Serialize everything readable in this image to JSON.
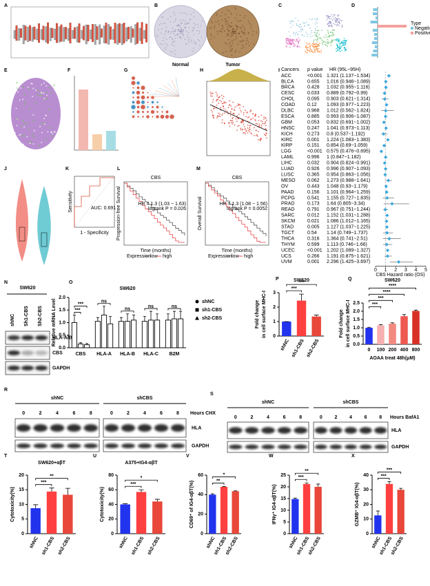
{
  "figure": {
    "panel_labels": [
      "A",
      "B",
      "C",
      "D",
      "E",
      "F",
      "G",
      "H",
      "I",
      "J",
      "K",
      "L",
      "M",
      "N",
      "O",
      "P",
      "Q",
      "R",
      "S",
      "T",
      "U",
      "V",
      "W",
      "X"
    ],
    "B": {
      "labels": [
        "Normal",
        "Tumor"
      ]
    },
    "D": {
      "legend_title": "Type",
      "legend": [
        "Negative",
        "Positive"
      ]
    },
    "K": {
      "annotation": "AUC: 0.691",
      "xlabel": "1 - Specificity",
      "ylabel": "Sensitivity"
    },
    "L": {
      "title": "CBS",
      "hr": "HR = 1.3 (1.03 − 1.63)",
      "p": "logrank P = 0.026",
      "ylabel": "Progression-free Survival",
      "xlabel": "Time (months)",
      "legend_title": "Expression",
      "legend": [
        "low",
        "high"
      ]
    },
    "M": {
      "title": "CBS",
      "hr": "HR = 1.3 (1.08 − 1.56)",
      "p": "logrank P = 0.0052",
      "ylabel": "Overall Survival",
      "xlabel": "Time (months)",
      "legend_title": "Expression",
      "legend": [
        "low",
        "high"
      ]
    },
    "N": {
      "title": "SW620",
      "lanes": [
        "shNC",
        "Sh1-CBS",
        "Sh2-CBS"
      ],
      "bands": [
        "HLA-A/B/C",
        "CBS",
        "GAPDH"
      ]
    },
    "R": {
      "groups": [
        "shNC",
        "shCBS"
      ],
      "hours": [
        0,
        2,
        4,
        6,
        8
      ],
      "unit": "Hours CHX",
      "bands": [
        "HLA",
        "GAPDH"
      ]
    },
    "S": {
      "groups": [
        "shNC",
        "shCBS"
      ],
      "hours": [
        0,
        2,
        4,
        6,
        8
      ],
      "unit": "Hours BafA1",
      "bands": [
        "HLA",
        "GAPDH"
      ]
    }
  },
  "chart_data": [
    {
      "type": "forest",
      "columns": [
        "Cancers",
        "p value",
        "HR (95L~95H)"
      ],
      "categories": [
        "ACC",
        "BLCA",
        "BRCA",
        "CESC",
        "CHOL",
        "COAD",
        "DLBC",
        "ESCA",
        "GBM",
        "HNSC",
        "KICH",
        "KIRC",
        "KIRP",
        "LGG",
        "LAML",
        "LIHC",
        "LUAD",
        "LUSC",
        "MESO",
        "OV",
        "PAAD",
        "PCPG",
        "PRAD",
        "READ",
        "SARC",
        "SKCM",
        "STAD",
        "TGCT",
        "THCA",
        "THYM",
        "UCEC",
        "UCS",
        "UVM"
      ],
      "p_values": [
        "<0.001",
        "0.655",
        "0.428",
        "0.033",
        "0.095",
        "0.12",
        "0.968",
        "0.885",
        "0.053",
        "0.247",
        "0.273",
        "0.001",
        "0.151",
        "<0.001",
        "0.996",
        "0.032",
        "0.926",
        "0.365",
        "0.062",
        "0.443",
        "0.156",
        "0.541",
        "0.173",
        "0.791",
        "0.012",
        "0.021",
        "0.005",
        "0.54",
        "0.316",
        "0.599",
        "<0.001",
        "0.266",
        "0.001"
      ],
      "values": [
        1.321,
        1.016,
        1.032,
        0.889,
        0.903,
        1.093,
        1.012,
        0.993,
        0.832,
        1.041,
        0.8,
        1.224,
        0.854,
        0.575,
        1,
        0.904,
        0.996,
        0.954,
        1.273,
        1.048,
        1.101,
        1.155,
        1.64,
        0.967,
        1.152,
        1.086,
        1.127,
        1.14,
        1.364,
        1.113,
        1.202,
        1.191,
        2.296
      ],
      "lower": [
        1.137,
        0.946,
        0.955,
        0.792,
        0.621,
        0.977,
        0.562,
        0.906,
        0.691,
        0.973,
        0.537,
        1.083,
        0.69,
        0.476,
        0.847,
        0.824,
        0.907,
        0.863,
        0.988,
        0.93,
        0.964,
        0.727,
        0.805,
        0.751,
        1.031,
        1.012,
        1.037,
        0.749,
        0.741,
        0.746,
        1.089,
        0.875,
        1.425
      ],
      "upper": [
        1.534,
        1.089,
        1.116,
        0.99,
        1.314,
        1.223,
        1.824,
        1.087,
        1.002,
        1.113,
        1.192,
        1.383,
        1.059,
        0.695,
        1.182,
        0.991,
        1.093,
        1.056,
        1.641,
        1.179,
        1.259,
        1.835,
        3.34,
        1.244,
        1.288,
        1.165,
        1.225,
        1.737,
        2.51,
        1.66,
        1.327,
        1.621,
        3.697
      ],
      "value_labels": [
        "1.321 (1.137~1.534)",
        "1.016 (0.946~1.089)",
        "1.032 (0.955~1.116)",
        "0.889 (0.792~0.99)",
        "0.903 (0.621~1.314)",
        "1.093 (0.977~1.223)",
        "1.012 (0.562~1.824)",
        "0.993 (0.906~1.087)",
        "0.832 (0.691~1.002)",
        "1.041 (0.973~1.113)",
        "0.8 (0.537~1.192)",
        "1.224 (1.083~1.383)",
        "0.854 (0.69~1.059)",
        "0.575 (0.476~0.695)",
        "1 (0.847~1.182)",
        "0.904 (0.824~0.991)",
        "0.996 (0.907~1.093)",
        "0.954 (0.863~1.056)",
        "1.273 (0.988~1.641)",
        "1.048 (0.93~1.179)",
        "1.101 (0.964~1.259)",
        "1.155 (0.727~1.835)",
        "1.64 (0.805~3.34)",
        "0.967 (0.751~1.244)",
        "1.152 (1.031~1.288)",
        "1.086 (1.012~1.165)",
        "1.127 (1.037~1.225)",
        "1.14 (0.749~1.737)",
        "1.364 (0.741~2.51)",
        "1.113 (0.746~1.66)",
        "1.202 (1.089~1.327)",
        "1.191 (0.875~1.621)",
        "2.296 (1.425~3.697)"
      ],
      "color": "#3aa6dd",
      "xlim": [
        0,
        5
      ],
      "xticks": [
        0,
        1,
        2,
        3,
        4,
        5
      ],
      "reference": 1,
      "xlabel": "CBS Hazard ratio (OS)"
    },
    {
      "type": "bar",
      "title": "SW620",
      "ylabel": [
        "Relative mRNA Level"
      ],
      "categories": [
        "CBS",
        "HLA-A",
        "HLA-B",
        "HLA-C",
        "B2M"
      ],
      "series": [
        {
          "name": "shNC",
          "color": "#000000",
          "marker": "circle",
          "values": [
            1.0,
            1.05,
            1.05,
            1.05,
            1.1
          ],
          "errors": [
            0.3,
            0.15,
            0.15,
            0.2,
            0.25
          ]
        },
        {
          "name": "sh1-CBS",
          "color": "#000000",
          "marker": "square",
          "values": [
            0.15,
            1.3,
            1.05,
            1.1,
            1.15
          ],
          "errors": [
            0.05,
            0.35,
            0.3,
            0.35,
            0.3
          ]
        },
        {
          "name": "sh2-CBS",
          "color": "#000000",
          "marker": "triangle",
          "values": [
            0.12,
            0.95,
            1.1,
            1.1,
            1.15
          ],
          "errors": [
            0.05,
            0.3,
            0.2,
            0.25,
            0.3
          ]
        }
      ],
      "ylim": [
        0,
        2
      ],
      "yticks": [
        {
          "value": 0,
          "label": "0.0"
        },
        0.5,
        {
          "value": 1,
          "label": "1.0"
        },
        1.5,
        {
          "value": 2,
          "label": "2.0"
        }
      ],
      "annotations": [
        [
          "***",
          "***"
        ],
        [
          "ns"
        ],
        [
          "ns"
        ],
        [
          "ns"
        ],
        [
          "ns"
        ]
      ]
    },
    {
      "type": "bar",
      "title": "SW620",
      "ylabel": [
        "Fold change",
        "in cell surface MHC-I"
      ],
      "categories": [
        "shNC",
        "sh1-CBS",
        "sh2-CBS"
      ],
      "values": [
        1,
        2.45,
        1.35
      ],
      "errors": [
        0,
        0.45,
        0.1
      ],
      "colors": [
        "#2233ee",
        "#ff4040",
        "#e8473a"
      ],
      "ylim": [
        0,
        3
      ],
      "yticks": [
        0,
        1,
        2,
        3
      ],
      "annotations": [
        "***",
        "***"
      ],
      "rotate_labels": true
    },
    {
      "type": "bar",
      "title": "SW620",
      "ylabel": [
        "Fold change",
        "in cell surface MHC-I"
      ],
      "xlabel": "AOAA treat 48h(μM)",
      "categories": [
        0,
        100,
        200,
        400,
        800
      ],
      "values": [
        1,
        1.15,
        1.25,
        1.7,
        2.02
      ],
      "errors": [
        0.03,
        0.04,
        0.05,
        0.1,
        0.05
      ],
      "colors": [
        "#2233ee",
        "#f7b0b0",
        "#f28a80",
        "#ee5a52",
        "#d73027"
      ],
      "ylim": [
        0,
        2.5
      ],
      "yticks": [
        {
          "value": 0,
          "label": "0.0"
        },
        0.5,
        {
          "value": 1,
          "label": "1.0"
        },
        1.5,
        {
          "value": 2,
          "label": "2.0"
        },
        2.5
      ],
      "annotations": [
        "***",
        "***",
        "****",
        "****"
      ]
    },
    {
      "type": "bar",
      "title": "SW620+αβT",
      "ylabel": [
        "Cytotoxicity(%)"
      ],
      "categories": [
        "shNC",
        "sh1-CBS",
        "sh2-CBS"
      ],
      "values": [
        8.7,
        14.4,
        13.3
      ],
      "errors": [
        1.2,
        1.2,
        2.2
      ],
      "colors": [
        "#2233ee",
        "#ff4040",
        "#e8473a"
      ],
      "ylim": [
        0,
        20
      ],
      "yticks": [
        0,
        5,
        10,
        15,
        20
      ],
      "annotations": [
        "***",
        "**"
      ],
      "rotate_labels": true
    },
    {
      "type": "bar",
      "title": "A375+IG4-αβT",
      "ylabel": [
        "Cytotoxicity(%)"
      ],
      "categories": [
        "shNC",
        "sh1-CBS",
        "sh2-CBS"
      ],
      "values": [
        40,
        57,
        44
      ],
      "errors": [
        1,
        3,
        3
      ],
      "colors": [
        "#2233ee",
        "#ff4040",
        "#e8473a"
      ],
      "ylim": [
        0,
        80
      ],
      "yticks": [
        0,
        20,
        40,
        60,
        80
      ],
      "annotations": [
        "***",
        "*"
      ],
      "rotate_labels": true
    },
    {
      "type": "bar",
      "ylabel": [
        "CD69⁺ of IG4-αβT(%)"
      ],
      "categories": [
        "shNC",
        "sh1-CBS",
        "sh2-CBS"
      ],
      "values": [
        40,
        48,
        43.5
      ],
      "errors": [
        0.8,
        0.3,
        0.4
      ],
      "colors": [
        "#2233ee",
        "#ff4040",
        "#e8473a"
      ],
      "ylim": [
        0,
        60
      ],
      "yticks": [
        0,
        20,
        40,
        60
      ],
      "annotations": [
        "**",
        "*"
      ],
      "rotate_labels": true
    },
    {
      "type": "bar",
      "ylabel": [
        "IFNγ⁺ IG4-αβT(%)"
      ],
      "categories": [
        "shNC",
        "sh1-CBS",
        "sh2-CBS"
      ],
      "values": [
        14.8,
        21.2,
        20
      ],
      "errors": [
        0.4,
        0.5,
        1.2
      ],
      "colors": [
        "#2233ee",
        "#ff4040",
        "#e8473a"
      ],
      "ylim": [
        0,
        25
      ],
      "yticks": [
        0,
        5,
        10,
        15,
        20,
        25
      ],
      "annotations": [
        "***",
        "**"
      ],
      "rotate_labels": true
    },
    {
      "type": "bar",
      "ylabel": [
        "GZMB⁺ IG4-αβT(%)"
      ],
      "categories": [
        "shNC",
        "sh1-CBS",
        "sh2-CBS"
      ],
      "values": [
        12.5,
        34,
        30
      ],
      "errors": [
        3,
        1.5,
        1
      ],
      "colors": [
        "#2233ee",
        "#ff4040",
        "#e8473a"
      ],
      "ylim": [
        0,
        40
      ],
      "yticks": [
        0,
        10,
        20,
        30,
        40
      ],
      "annotations": [
        "***",
        "***"
      ],
      "rotate_labels": true
    }
  ]
}
